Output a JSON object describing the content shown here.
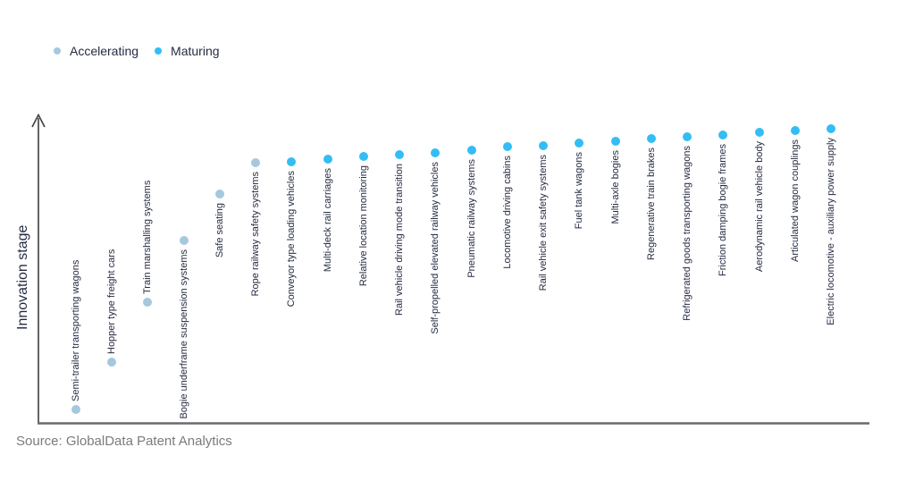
{
  "legend": {
    "items": [
      {
        "label": "Accelerating",
        "color": "#a5c8dd"
      },
      {
        "label": "Maturing",
        "color": "#33bdf5"
      }
    ]
  },
  "y_axis": {
    "label": "Innovation stage"
  },
  "source": {
    "text": "Source: GlobalData Patent Analytics"
  },
  "chart_data": {
    "type": "scatter",
    "title": "",
    "xlabel": "",
    "ylabel": "Innovation stage",
    "ylim": [
      0,
      100
    ],
    "grid": false,
    "legend_position": "top-left",
    "y_axis_note": "no numeric ticks shown; innovation_stage values estimated from dot heights, 0 = axis bottom, 100 = arrow tip",
    "points": [
      {
        "label": "Semi-trailer transporting wagons",
        "stage": "Accelerating",
        "innovation_stage": 4.4
      },
      {
        "label": "Hopper type freight cars",
        "stage": "Accelerating",
        "innovation_stage": 20.0
      },
      {
        "label": "Train marshalling systems",
        "stage": "Accelerating",
        "innovation_stage": 39.7
      },
      {
        "label": "Bogie underframe suspension systems",
        "stage": "Accelerating",
        "innovation_stage": 60.0
      },
      {
        "label": "Safe seating",
        "stage": "Accelerating",
        "innovation_stage": 75.3
      },
      {
        "label": "Rope railway safety systems",
        "stage": "Accelerating",
        "innovation_stage": 85.6
      },
      {
        "label": "Conveyor type loading vehicles",
        "stage": "Maturing",
        "innovation_stage": 85.9
      },
      {
        "label": "Multi-deck rail carriages",
        "stage": "Maturing",
        "innovation_stage": 86.8
      },
      {
        "label": "Relative location monitoring",
        "stage": "Maturing",
        "innovation_stage": 87.6
      },
      {
        "label": "Rail vehicle driving mode transition",
        "stage": "Maturing",
        "innovation_stage": 88.2
      },
      {
        "label": "Self-propelled elevated railway vehicles",
        "stage": "Maturing",
        "innovation_stage": 88.8
      },
      {
        "label": "Pneumatic railway systems",
        "stage": "Maturing",
        "innovation_stage": 89.7
      },
      {
        "label": "Locomotive driving cabins",
        "stage": "Maturing",
        "innovation_stage": 90.9
      },
      {
        "label": "Rail vehicle exit safety systems",
        "stage": "Maturing",
        "innovation_stage": 91.2
      },
      {
        "label": "Fuel tank wagons",
        "stage": "Maturing",
        "innovation_stage": 92.1
      },
      {
        "label": "Multi-axle bogies",
        "stage": "Maturing",
        "innovation_stage": 92.6
      },
      {
        "label": "Regenerative train brakes",
        "stage": "Maturing",
        "innovation_stage": 93.5
      },
      {
        "label": "Refrigerated goods transporting wagons",
        "stage": "Maturing",
        "innovation_stage": 94.1
      },
      {
        "label": "Friction damping bogie frames",
        "stage": "Maturing",
        "innovation_stage": 94.7
      },
      {
        "label": "Aerodynamic rail vehicle body",
        "stage": "Maturing",
        "innovation_stage": 95.6
      },
      {
        "label": "Articulated wagon couplings",
        "stage": "Maturing",
        "innovation_stage": 96.2
      },
      {
        "label": "Electric locomotive - auxiliary power supply",
        "stage": "Maturing",
        "innovation_stage": 96.8
      }
    ]
  }
}
